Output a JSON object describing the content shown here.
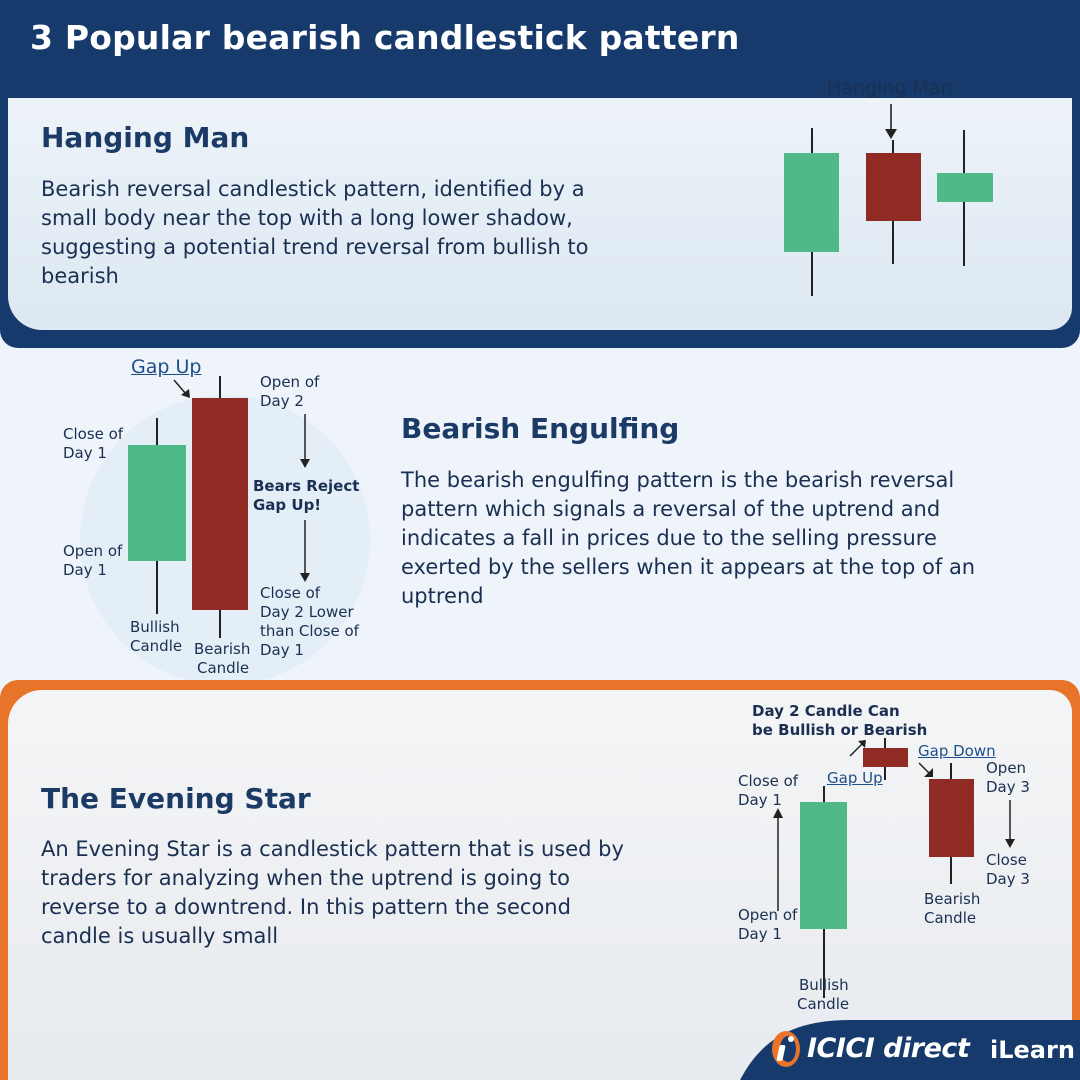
{
  "title": "3 Popular bearish candlestick pattern",
  "hanging_man": {
    "heading": "Hanging Man",
    "description": "Bearish reversal candlestick pattern, identified by a small body near the top with a long lower shadow, suggesting a potential trend reversal from bullish to bearish",
    "diagram_label": "Hanging Man"
  },
  "bearish_engulfing": {
    "heading": "Bearish Engulfing",
    "description": "The bearish engulfing pattern is the bearish reversal pattern which signals a reversal of the uptrend and indicates a fall in prices due to the selling pressure exerted by the sellers when it appears at the top of an uptrend",
    "gap_up": "Gap Up",
    "close_day1": [
      "Close of",
      "Day 1"
    ],
    "open_day1": [
      "Open of",
      "Day 1"
    ],
    "open_day2": [
      "Open of",
      "Day 2"
    ],
    "bears_reject": [
      "Bears Reject",
      "Gap Up!"
    ],
    "close_day2": [
      "Close of",
      "Day 2 Lower",
      "than Close of",
      "Day 1"
    ],
    "bullish_candle": [
      "Bullish",
      "Candle"
    ],
    "bearish_candle": [
      "Bearish",
      "Candle"
    ]
  },
  "evening_star": {
    "heading": "The Evening Star",
    "description": "An Evening Star is a candlestick pattern that is used by traders for analyzing when the uptrend is going to reverse to a downtrend. In this pattern the second candle is usually small",
    "day2_note": [
      "Day 2 Candle Can",
      "be Bullish or Bearish"
    ],
    "gap_up": "Gap Up",
    "gap_down": "Gap Down",
    "close_day1": [
      "Close of",
      "Day 1"
    ],
    "open_day1": [
      "Open of",
      "Day 1"
    ],
    "open_day3": [
      "Open",
      "Day 3"
    ],
    "close_day3": [
      "Close",
      "Day 3"
    ],
    "bullish_candle": [
      "Bullish",
      "Candle"
    ],
    "bearish_candle": [
      "Bearish",
      "Candle"
    ]
  },
  "logo": {
    "brand": "ICICI direct",
    "sub": "iLearn",
    "icon": "icici-logo-icon"
  },
  "colors": {
    "navy": "#163a6b",
    "orange": "#e8742a",
    "green": "#4fb987",
    "red": "#8f2a24"
  }
}
